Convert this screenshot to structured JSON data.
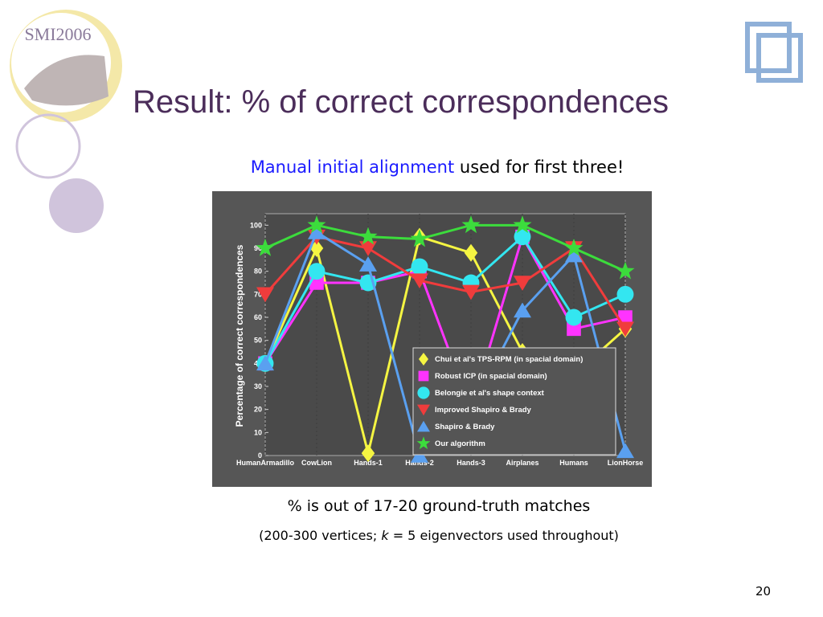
{
  "slide": {
    "logo": "SMI2006",
    "title": "Result: % of correct correspondences",
    "subtitle_highlight": "Manual initial alignment",
    "subtitle_rest": "used for first three!",
    "note": "% is out of 17-20 ground-truth matches",
    "detail_start": "(200-300 vertices;",
    "detail_var": "k",
    "detail_end": "= 5 eigenvectors used throughout)",
    "page_number": "20"
  },
  "chart_data": {
    "type": "line",
    "y_label": "Percentage of correct correspondences",
    "categories": [
      "HumanArmadillo",
      "CowLion",
      "Hands-1",
      "Hands-2",
      "Hands-3",
      "Airplanes",
      "Humans",
      "LionHorse"
    ],
    "ylim": [
      0,
      105
    ],
    "yticks": [
      0,
      10,
      20,
      30,
      40,
      50,
      60,
      70,
      80,
      90,
      100
    ],
    "series": [
      {
        "name": "Chui et al's TPS-RPM (in spacial domain)",
        "color": "#f5f542",
        "marker": "diamond",
        "values": [
          40,
          90,
          1,
          95,
          88,
          45,
          35,
          55
        ]
      },
      {
        "name": "Robust ICP (in spacial domain)",
        "color": "#ff33ff",
        "marker": "square",
        "values": [
          40,
          75,
          75,
          80,
          20,
          95,
          55,
          60
        ]
      },
      {
        "name": "Belongie et al's shape context",
        "color": "#33e6f0",
        "marker": "circle",
        "values": [
          40,
          80,
          75,
          82,
          75,
          95,
          60,
          70
        ]
      },
      {
        "name": "Improved Shapiro & Brady",
        "color": "#f03c3c",
        "marker": "tridown",
        "values": [
          70,
          95,
          90,
          76,
          71,
          75,
          90,
          55
        ]
      },
      {
        "name": "Shapiro & Brady",
        "color": "#5aa0f0",
        "marker": "triup",
        "values": [
          40,
          97,
          83,
          0,
          20,
          63,
          87,
          2
        ]
      },
      {
        "name": "Our algorithm",
        "color": "#3cdc3c",
        "marker": "star",
        "values": [
          90,
          100,
          95,
          94,
          100,
          100,
          90,
          80
        ]
      }
    ]
  }
}
